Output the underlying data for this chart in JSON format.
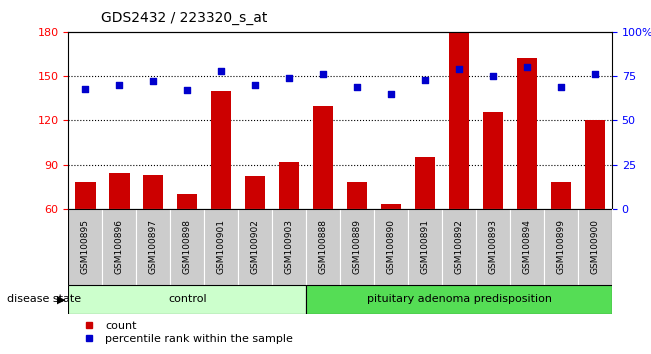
{
  "title": "GDS2432 / 223320_s_at",
  "samples": [
    "GSM100895",
    "GSM100896",
    "GSM100897",
    "GSM100898",
    "GSM100901",
    "GSM100902",
    "GSM100903",
    "GSM100888",
    "GSM100889",
    "GSM100890",
    "GSM100891",
    "GSM100892",
    "GSM100893",
    "GSM100894",
    "GSM100899",
    "GSM100900"
  ],
  "counts": [
    78,
    84,
    83,
    70,
    140,
    82,
    92,
    130,
    78,
    63,
    95,
    180,
    126,
    162,
    78,
    120
  ],
  "percentile": [
    68,
    70,
    72,
    67,
    78,
    70,
    74,
    76,
    69,
    65,
    73,
    79,
    75,
    80,
    69,
    76
  ],
  "control_count": 7,
  "ylim_left": [
    60,
    180
  ],
  "ylim_right": [
    0,
    100
  ],
  "yticks_left": [
    60,
    90,
    120,
    150,
    180
  ],
  "yticks_right": [
    0,
    25,
    50,
    75,
    100
  ],
  "ytick_right_labels": [
    "0",
    "25",
    "50",
    "75",
    "100%"
  ],
  "bar_color": "#cc0000",
  "dot_color": "#0000cc",
  "bar_bottom": 60,
  "control_label": "control",
  "disease_label": "pituitary adenoma predisposition",
  "disease_state_label": "disease state",
  "legend_count": "count",
  "legend_percentile": "percentile rank within the sample",
  "control_bg": "#ccffcc",
  "disease_bg": "#55dd55",
  "xlabel_area_bg": "#cccccc",
  "fig_width": 6.51,
  "fig_height": 3.54,
  "dpi": 100
}
